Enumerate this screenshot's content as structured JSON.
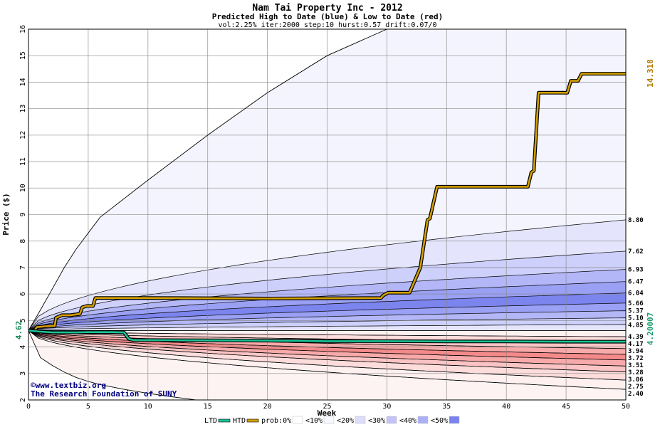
{
  "chart_data": {
    "type": "area",
    "title": "Nam Tai Property Inc - 2012",
    "subtitle": "Predicted High to Date (blue) &  Low to Date (red)",
    "params": "vol:2.25% iter:2000 step:10 hurst:0.57 drift:0.07/0",
    "xlabel": "Week",
    "ylabel": "Price ($)",
    "xlim": [
      0,
      50
    ],
    "ylim": [
      2,
      16
    ],
    "x_ticks": [
      0,
      5,
      10,
      15,
      20,
      25,
      30,
      35,
      40,
      45,
      50
    ],
    "y_ticks": [
      2,
      3,
      4,
      5,
      6,
      7,
      8,
      9,
      10,
      11,
      12,
      13,
      14,
      15,
      16
    ],
    "grid": true,
    "start_price": 4.62,
    "start_label": "4.62",
    "high_final_label": "14.318",
    "low_final_label": "4.20007",
    "percentile_labels": [
      "8.80",
      "7.62",
      "6.93",
      "6.47",
      "6.04",
      "5.66",
      "5.37",
      "5.10",
      "4.85",
      "4.39",
      "4.17",
      "3.94",
      "3.72",
      "3.51",
      "3.28",
      "3.06",
      "2.75",
      "2.40"
    ],
    "high_bands": [
      {
        "prob": "0%",
        "final": 16.0
      },
      {
        "prob": "10%",
        "final": 8.8
      },
      {
        "prob": "20%",
        "final": 7.62
      },
      {
        "prob": "30%",
        "final": 6.93
      },
      {
        "prob": "40%",
        "final": 6.47
      },
      {
        "prob": "50%",
        "final": 6.04
      },
      {
        "prob": "40%",
        "final": 5.66
      },
      {
        "prob": "30%",
        "final": 5.37
      },
      {
        "prob": "20%",
        "final": 5.1
      },
      {
        "prob": "10%",
        "final": 4.85
      }
    ],
    "low_bands": [
      {
        "prob": "10%",
        "final": 4.39
      },
      {
        "prob": "20%",
        "final": 4.17
      },
      {
        "prob": "30%",
        "final": 3.94
      },
      {
        "prob": "40%",
        "final": 3.72
      },
      {
        "prob": "50%",
        "final": 3.51
      },
      {
        "prob": "40%",
        "final": 3.28
      },
      {
        "prob": "30%",
        "final": 3.06
      },
      {
        "prob": "20%",
        "final": 2.75
      },
      {
        "prob": "10%",
        "final": 2.4
      }
    ],
    "envelope_upper": {
      "x": [
        0,
        1,
        2,
        3,
        4,
        5,
        6,
        10,
        15,
        20,
        25,
        28,
        30
      ],
      "y": [
        4.62,
        5.4,
        6.2,
        7.0,
        7.7,
        8.3,
        8.9,
        10.3,
        12.0,
        13.6,
        15.0,
        15.6,
        16.0
      ]
    },
    "envelope_lower": {
      "x": [
        0,
        1,
        2,
        3,
        4,
        5,
        6,
        8,
        10,
        12,
        14
      ],
      "y": [
        4.62,
        3.6,
        3.3,
        3.05,
        2.85,
        2.7,
        2.58,
        2.4,
        2.25,
        2.12,
        2.0
      ]
    },
    "series": [
      {
        "name": "HTD",
        "color": "#d4a000",
        "x": [
          0,
          0.5,
          0.7,
          1.4,
          2.2,
          2.3,
          2.8,
          3.5,
          4.3,
          4.5,
          4.9,
          5.4,
          5.6,
          10,
          20,
          29.5,
          29.7,
          30.1,
          31.9,
          32.8,
          33.4,
          33.6,
          34.2,
          41.8,
          42.1,
          42.3,
          42.7,
          45.1,
          45.4,
          46.0,
          46.3,
          50
        ],
        "y": [
          4.62,
          4.62,
          4.75,
          4.78,
          4.8,
          5.1,
          5.2,
          5.2,
          5.25,
          5.5,
          5.55,
          5.55,
          5.85,
          5.85,
          5.83,
          5.85,
          5.95,
          6.05,
          6.05,
          7.0,
          8.8,
          8.85,
          10.05,
          10.05,
          10.6,
          10.65,
          13.6,
          13.6,
          14.05,
          14.05,
          14.318,
          14.318
        ]
      },
      {
        "name": "LTD",
        "color": "#19c294",
        "x": [
          0,
          1,
          2,
          3,
          4,
          5,
          6,
          7,
          8,
          8.4,
          8.8,
          10,
          15,
          20,
          25,
          30,
          35,
          40,
          45,
          50
        ],
        "y": [
          4.62,
          4.58,
          4.55,
          4.55,
          4.55,
          4.56,
          4.56,
          4.56,
          4.55,
          4.3,
          4.26,
          4.26,
          4.25,
          4.24,
          4.22,
          4.22,
          4.21,
          4.21,
          4.2,
          4.20007
        ]
      }
    ],
    "legend": {
      "placement": "bottom",
      "items": [
        "LTD",
        "HTD",
        "prob:0%",
        "<10%",
        "<20%",
        "<30%",
        "<40%",
        "<50%"
      ],
      "colors": [
        "#19c294",
        "#d4a000",
        "#ffffff",
        "#f7f7ff",
        "#ddddfb",
        "#c3c3f8",
        "#aab0f6",
        "#7a82ee"
      ]
    },
    "credits": [
      "©www.textbiz.org",
      "The Research Foundation of SUNY"
    ]
  }
}
